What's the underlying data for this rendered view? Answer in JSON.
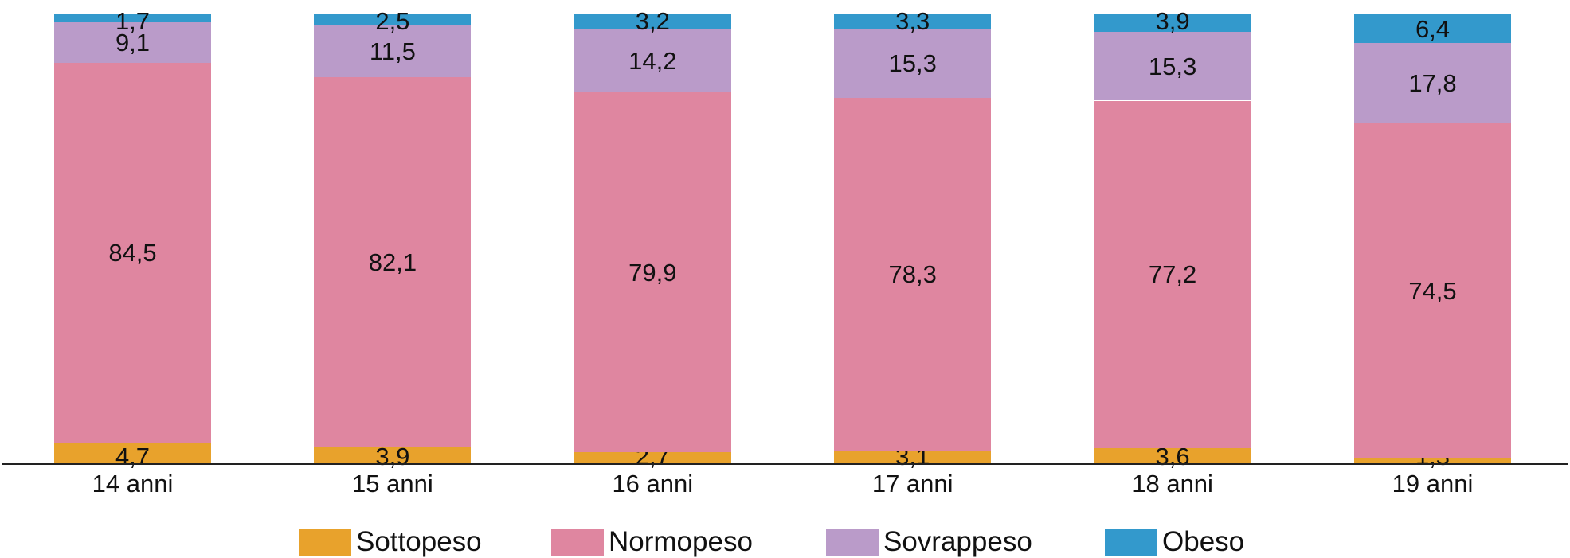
{
  "chart_data": {
    "type": "bar",
    "stacked": true,
    "percent": true,
    "title": "",
    "xlabel": "",
    "ylabel": "",
    "ylim": [
      0,
      100
    ],
    "grid": false,
    "legend_position": "bottom",
    "categories": [
      "14 anni",
      "15 anni",
      "16 anni",
      "17 anni",
      "18 anni",
      "19 anni"
    ],
    "series": [
      {
        "name": "Sottopeso",
        "color": "#E8A22C",
        "values": [
          4.7,
          3.9,
          2.7,
          3.1,
          3.6,
          1.3
        ],
        "labels": [
          "4,7",
          "3,9",
          "2,7",
          "3,1",
          "3,6",
          "1,3"
        ]
      },
      {
        "name": "Normopeso",
        "color": "#DF86A0",
        "values": [
          84.5,
          82.1,
          79.9,
          78.3,
          77.2,
          74.5
        ],
        "labels": [
          "84,5",
          "82,1",
          "79,9",
          "78,3",
          "77,2",
          "74,5"
        ]
      },
      {
        "name": "Sovrappeso",
        "color": "#BA9BC9",
        "values": [
          9.1,
          11.5,
          14.2,
          15.3,
          15.3,
          17.8
        ],
        "labels": [
          "9,1",
          "11,5",
          "14,2",
          "15,3",
          "15,3",
          "17,8"
        ]
      },
      {
        "name": "Obeso",
        "color": "#3399CC",
        "values": [
          1.7,
          2.5,
          3.2,
          3.3,
          3.9,
          6.4
        ],
        "labels": [
          "1,7",
          "2,5",
          "3,2",
          "3,3",
          "3,9",
          "6,4"
        ]
      }
    ]
  },
  "legend": {
    "items": [
      {
        "label": "Sottopeso",
        "color": "#E8A22C"
      },
      {
        "label": "Normopeso",
        "color": "#DF86A0"
      },
      {
        "label": "Sovrappeso",
        "color": "#BA9BC9"
      },
      {
        "label": "Obeso",
        "color": "#3399CC"
      }
    ]
  }
}
